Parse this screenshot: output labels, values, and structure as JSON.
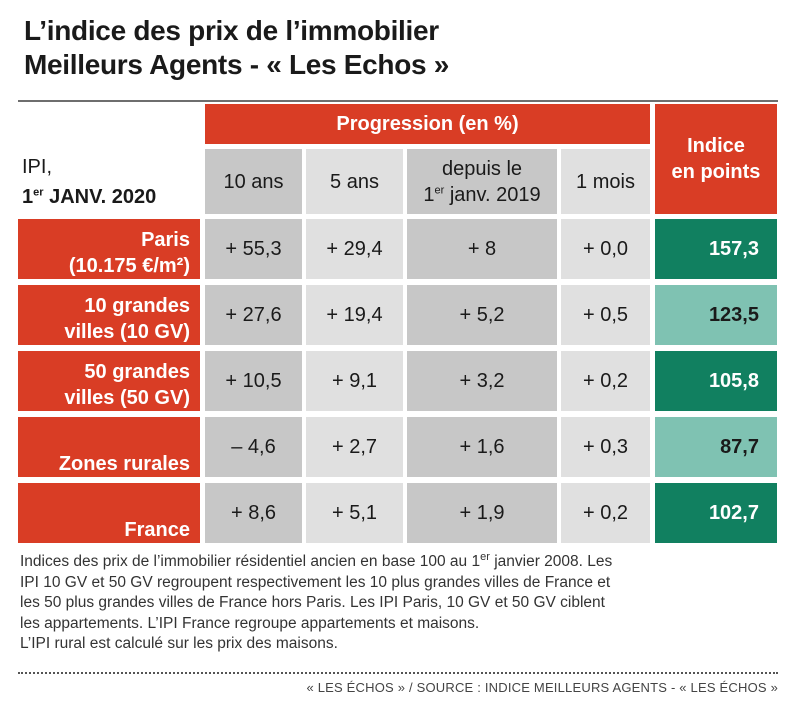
{
  "title_line1": "L’indice des prix de l’immobilier",
  "title_line2": "Meilleurs Agents - « Les Echos »",
  "header": {
    "progression": "Progression (en %)",
    "index_line1": "Indice",
    "index_line2": "en points",
    "ipi_line1": "IPI,",
    "ipi_day": "1",
    "ipi_sup": "er",
    "ipi_rest": " JANV. 2020",
    "col_10": "10 ans",
    "col_5": "5 ans",
    "col_since_line1": "depuis le",
    "col_since_day": "1",
    "col_since_sup": "er",
    "col_since_rest": " janv. 2019",
    "col_1m": "1 mois"
  },
  "chart_data": {
    "type": "table",
    "columns": [
      "10 ans",
      "5 ans",
      "depuis le 1er janv. 2019",
      "1 mois",
      "Indice en points"
    ],
    "rows": [
      {
        "label_line1": "Paris",
        "label_line2": "(10.175 €/m²)",
        "ten": "+ 55,3",
        "five": "+ 29,4",
        "since": "+ 8",
        "month": "+ 0,0",
        "index": "157,3"
      },
      {
        "label_line1": "10 grandes",
        "label_line2": "villes (10 GV)",
        "ten": "+ 27,6",
        "five": "+ 19,4",
        "since": "+ 5,2",
        "month": "+ 0,5",
        "index": "123,5"
      },
      {
        "label_line1": "50 grandes",
        "label_line2": "villes (50 GV)",
        "ten": "+ 10,5",
        "five": "+ 9,1",
        "since": "+ 3,2",
        "month": "+ 0,2",
        "index": "105,8"
      },
      {
        "label_line1": "Zones rurales",
        "label_line2": "",
        "ten": "– 4,6",
        "five": "+ 2,7",
        "since": "+ 1,6",
        "month": "+ 0,3",
        "index": "87,7"
      },
      {
        "label_line1": "France",
        "label_line2": "",
        "ten": "+ 8,6",
        "five": "+ 5,1",
        "since": "+ 1,9",
        "month": "+ 0,2",
        "index": "102,7"
      }
    ]
  },
  "notes": {
    "l1_a": "Indices des prix de l’immobilier résidentiel ancien en base 100 au 1",
    "l1_sup": "er",
    "l1_b": " janvier 2008. Les",
    "l2": "IPI 10 GV et 50 GV regroupent respectivement les 10 plus grandes villes de France et",
    "l3": "les 50 plus grandes villes de France hors Paris. Les IPI Paris, 10 GV et 50 GV ciblent",
    "l4": "les appartements. L’IPI France regroupe appartements et maisons.",
    "l5": "L’IPI rural est calculé sur les prix des maisons."
  },
  "source": "« LES ÉCHOS » / SOURCE : INDICE MEILLEURS AGENTS - « LES ÉCHOS »",
  "colors": {
    "red": "#d93d25",
    "green_dark": "#118060",
    "green_light": "#7fc2b2",
    "grey_dark": "#c7c7c7",
    "grey_light": "#e0e0e0"
  }
}
